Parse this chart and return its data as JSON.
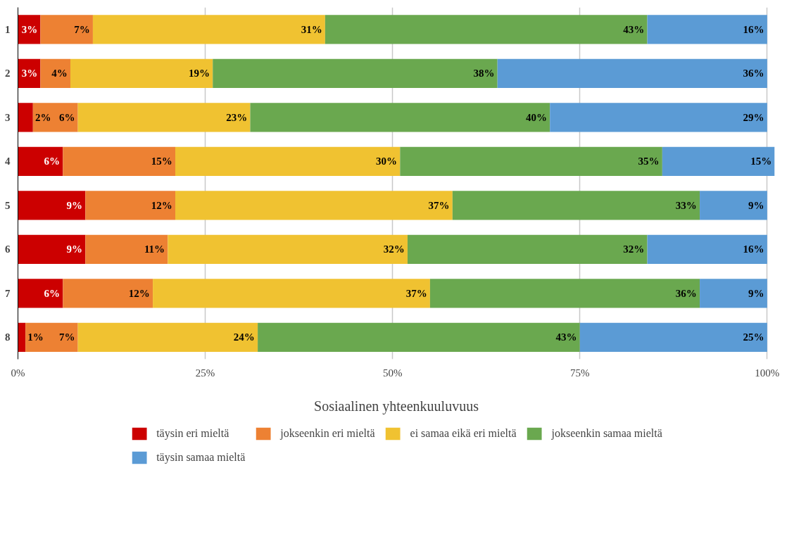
{
  "chart_data": {
    "type": "bar",
    "orientation": "horizontal",
    "stacked": true,
    "xlabel": "Sosiaalinen yhteenkuuluvuus",
    "categories": [
      "1",
      "2",
      "3",
      "4",
      "5",
      "6",
      "7",
      "8"
    ],
    "series": [
      {
        "name": "täysin eri mieltä",
        "color": "#cc0000",
        "values": [
          3,
          3,
          2,
          6,
          9,
          9,
          6,
          1
        ],
        "value_labels": [
          "3%",
          "3%",
          "2%",
          "6%",
          "9%",
          "9%",
          "6%",
          "1%"
        ]
      },
      {
        "name": "jokseenkin eri mieltä",
        "color": "#ed8133",
        "values": [
          7,
          4,
          6,
          15,
          12,
          11,
          12,
          7
        ],
        "value_labels": [
          "7%",
          "4%",
          "6%",
          "15%",
          "12%",
          "11%",
          "12%",
          "7%"
        ]
      },
      {
        "name": "ei samaa eikä eri mieltä",
        "color": "#f0c231",
        "values": [
          31,
          19,
          23,
          30,
          37,
          32,
          37,
          24
        ],
        "value_labels": [
          "31%",
          "19%",
          "23%",
          "30%",
          "37%",
          "32%",
          "37%",
          "24%"
        ]
      },
      {
        "name": "jokseenkin samaa mieltä",
        "color": "#6aa84f",
        "values": [
          43,
          38,
          40,
          35,
          33,
          32,
          36,
          43
        ],
        "value_labels": [
          "43%",
          "38%",
          "40%",
          "35%",
          "33%",
          "32%",
          "36%",
          "43%"
        ]
      },
      {
        "name": "täysin samaa mieltä",
        "color": "#5b9bd5",
        "values": [
          16,
          36,
          29,
          15,
          9,
          16,
          9,
          25
        ],
        "value_labels": [
          "16%",
          "36%",
          "29%",
          "15%",
          "9%",
          "16%",
          "9%",
          "25%"
        ]
      }
    ],
    "xlim": [
      0,
      101
    ],
    "xticks": [
      {
        "value": 0,
        "label": "0%"
      },
      {
        "value": 25,
        "label": "25%"
      },
      {
        "value": 50,
        "label": "50%"
      },
      {
        "value": 75,
        "label": "75%"
      },
      {
        "value": 100,
        "label": "100%"
      }
    ],
    "grid": "x",
    "legend": "bottom"
  }
}
